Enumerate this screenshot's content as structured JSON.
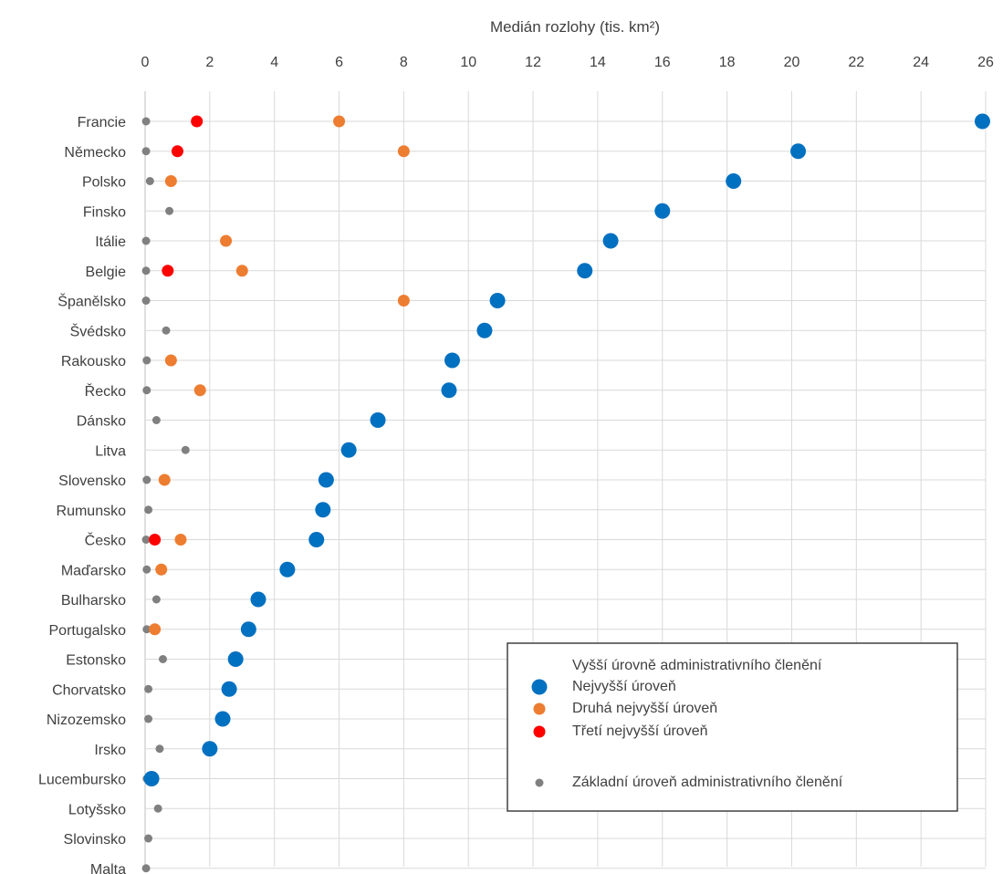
{
  "chart_data": {
    "type": "scatter",
    "title": "",
    "xlabel": "Medián rozlohy (tis. km²)",
    "ylabel": "",
    "xlim": [
      0,
      26
    ],
    "xticks": [
      0,
      2,
      4,
      6,
      8,
      10,
      12,
      14,
      16,
      18,
      20,
      22,
      24,
      26
    ],
    "grid": true,
    "legend_position": "bottom-right",
    "categories": [
      "Francie",
      "Německo",
      "Polsko",
      "Finsko",
      "Itálie",
      "Belgie",
      "Španělsko",
      "Švédsko",
      "Rakousko",
      "Řecko",
      "Dánsko",
      "Litva",
      "Slovensko",
      "Rumunsko",
      "Česko",
      "Maďarsko",
      "Bulharsko",
      "Portugalsko",
      "Estonsko",
      "Chorvatsko",
      "Nizozemsko",
      "Irsko",
      "Lucembursko",
      "Lotyšsko",
      "Slovinsko",
      "Malta"
    ],
    "legend_heading": "Vyšší úrovně administrativního členění",
    "series": [
      {
        "name": "Nejvyšší úroveň",
        "color": "#0070c0",
        "marker": "large",
        "values": [
          25.9,
          20.2,
          18.2,
          16.0,
          14.4,
          13.6,
          10.9,
          10.5,
          9.5,
          9.4,
          7.2,
          6.3,
          5.6,
          5.5,
          5.3,
          4.4,
          3.5,
          3.2,
          2.8,
          2.6,
          2.4,
          2.0,
          0.2,
          null,
          null,
          null
        ]
      },
      {
        "name": "Druhá nejvyšší úroveň",
        "color": "#ed7d31",
        "marker": "medium",
        "values": [
          6.0,
          8.0,
          0.8,
          null,
          2.5,
          3.0,
          8.0,
          null,
          0.8,
          1.7,
          null,
          null,
          0.6,
          null,
          1.1,
          0.5,
          null,
          0.3,
          null,
          null,
          null,
          null,
          null,
          null,
          null,
          null
        ]
      },
      {
        "name": "Třetí nejvyšší úroveň",
        "color": "#ff0000",
        "marker": "medium",
        "values": [
          1.6,
          1.0,
          null,
          null,
          null,
          0.7,
          null,
          null,
          null,
          null,
          null,
          null,
          null,
          null,
          0.3,
          null,
          null,
          null,
          null,
          null,
          null,
          null,
          null,
          null,
          null,
          null
        ]
      },
      {
        "name": "Základní úroveň administrativního členění",
        "color": "#808080",
        "marker": "small",
        "values": [
          0.03,
          0.03,
          0.15,
          0.75,
          0.03,
          0.03,
          0.03,
          0.65,
          0.05,
          0.05,
          0.35,
          1.25,
          0.05,
          0.1,
          0.03,
          0.05,
          0.35,
          0.05,
          0.55,
          0.1,
          0.1,
          0.45,
          0.05,
          0.4,
          0.1,
          0.03
        ]
      }
    ]
  }
}
